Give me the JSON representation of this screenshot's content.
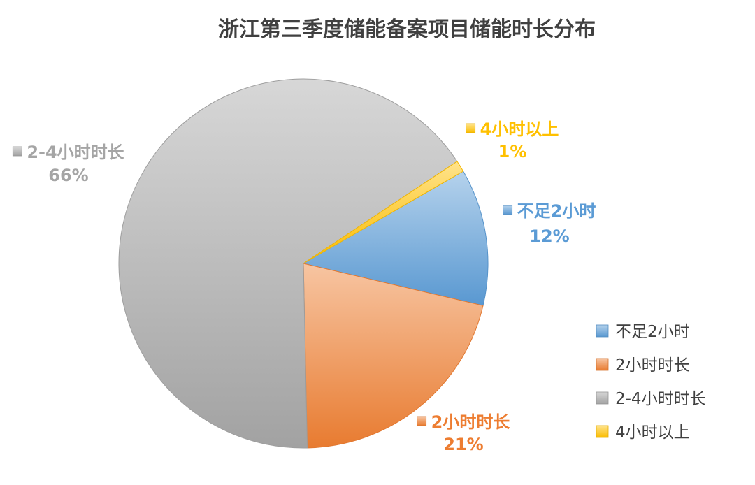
{
  "chart_data": {
    "type": "pie",
    "title": "浙江第三季度储能备案项目储能时长分布",
    "start_angle_deg": 60,
    "direction": "clockwise",
    "legend_position": "bottom-right",
    "slices": [
      {
        "label": "不足2小时",
        "value": 12,
        "value_label": "12%",
        "color": "#5B9BD5"
      },
      {
        "label": "2小时时长",
        "value": 21,
        "value_label": "21%",
        "color": "#ED7D31"
      },
      {
        "label": "2-4小时时长",
        "value": 66,
        "value_label": "66%",
        "color": "#A5A5A5"
      },
      {
        "label": "4小时以上",
        "value": 1,
        "value_label": "1%",
        "color": "#FFC000"
      }
    ],
    "label_colors": [
      "#5B9BD5",
      "#ED7D31",
      "#A5A5A5",
      "#FFC000"
    ]
  }
}
